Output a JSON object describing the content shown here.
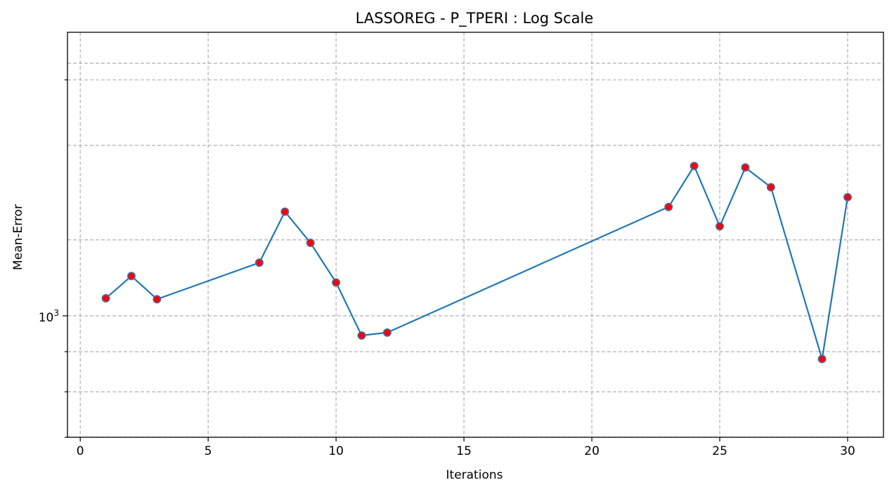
{
  "chart_data": {
    "type": "line",
    "title": "LASSOREG - P_TPERI : Log Scale",
    "xlabel": "Iterations",
    "ylabel": "Mean-Error",
    "xlim": [
      -0.5,
      31.4
    ],
    "ylim": [
      700,
      2300
    ],
    "yscale": "log",
    "grid": true,
    "x_ticks": [
      0,
      5,
      10,
      15,
      20,
      25,
      30
    ],
    "x_tick_labels": [
      "0",
      "5",
      "10",
      "15",
      "20",
      "25",
      "30"
    ],
    "y_major_ticks": [
      1000
    ],
    "y_major_tick_labels": [
      {
        "base": "10",
        "exp": "3"
      }
    ],
    "y_minor_ticks": [
      700,
      800,
      900,
      2000
    ],
    "y_minor_grid": [
      700,
      800,
      900,
      2000
    ],
    "y_extra_grid": [
      1250,
      1650,
      2100
    ],
    "series": [
      {
        "x": [
          1,
          2,
          3,
          7,
          8,
          9,
          10,
          11,
          12,
          23,
          24,
          25,
          26,
          27,
          29,
          30
        ],
        "y": [
          1053,
          1124,
          1050,
          1169,
          1358,
          1239,
          1103,
          944,
          952,
          1377,
          1553,
          1301,
          1546,
          1459,
          881,
          1417
        ],
        "line_color": "#1f77b4",
        "marker_face": "#ff0000",
        "marker_edge": "#4a6ea8"
      }
    ]
  }
}
